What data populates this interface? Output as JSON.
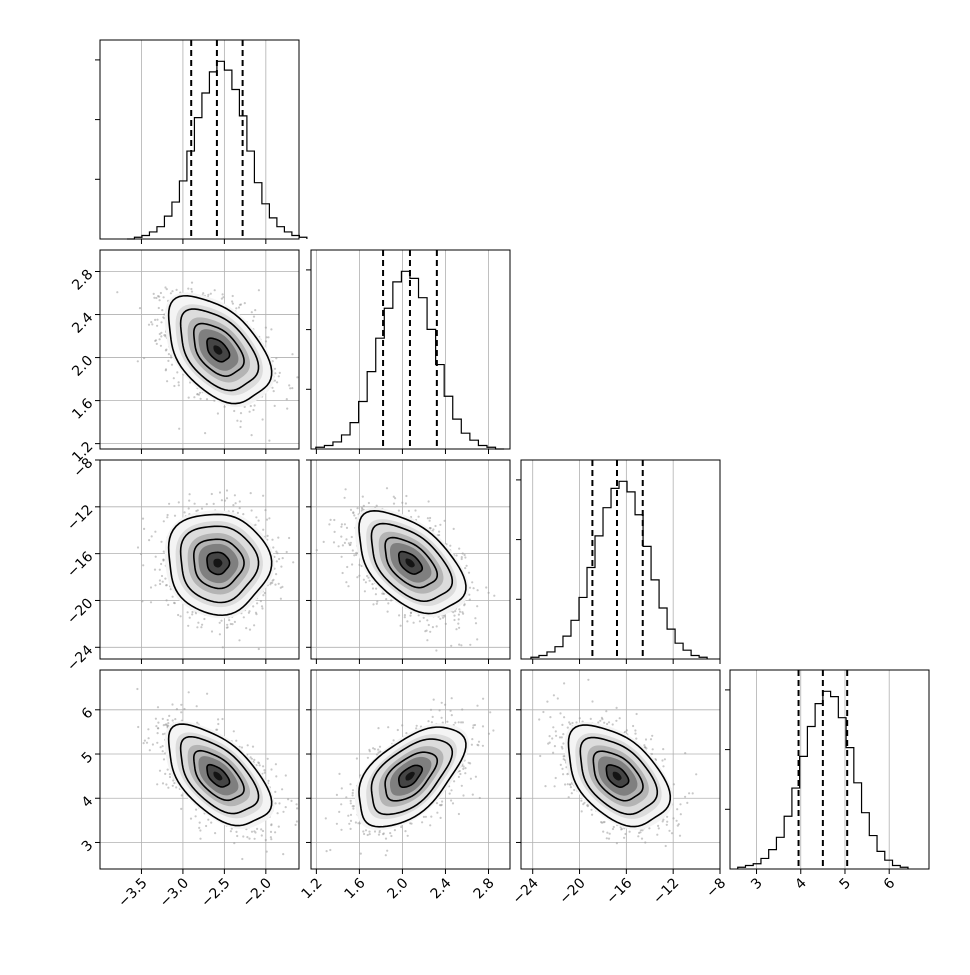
{
  "chart_data": {
    "type": "corner",
    "parameters": [
      {
        "index": 0,
        "range": [
          -4.0,
          -1.6
        ],
        "ticks": [
          -3.5,
          -3.0,
          -2.5,
          -2.0
        ],
        "tick_labels": [
          "−3.5",
          "−3.0",
          "−2.5",
          "−2.0"
        ],
        "quantiles": [
          -2.9,
          -2.59,
          -2.28
        ],
        "mean": -2.58,
        "sd": 0.3
      },
      {
        "index": 1,
        "range": [
          1.15,
          3.0
        ],
        "ticks": [
          1.2,
          1.6,
          2.0,
          2.4,
          2.8
        ],
        "tick_labels": [
          "1.2",
          "1.6",
          "2.0",
          "2.4",
          "2.8"
        ],
        "quantiles": [
          1.82,
          2.07,
          2.32
        ],
        "mean": 2.07,
        "sd": 0.24
      },
      {
        "index": 2,
        "range": [
          -25.0,
          -8.0
        ],
        "ticks": [
          -24,
          -20,
          -16,
          -12,
          -8
        ],
        "tick_labels": [
          "−24",
          "−20",
          "−16",
          "−12",
          "−8"
        ],
        "quantiles": [
          -18.9,
          -16.8,
          -14.6
        ],
        "mean": -16.8,
        "sd": 2.1
      },
      {
        "index": 3,
        "range": [
          2.4,
          6.9
        ],
        "ticks": [
          3,
          4,
          5,
          6
        ],
        "tick_labels": [
          "3",
          "4",
          "5",
          "6"
        ],
        "quantiles": [
          3.95,
          4.5,
          5.05
        ],
        "mean": 4.5,
        "sd": 0.55
      }
    ],
    "correlations": {
      "0-1": -0.45,
      "0-2": -0.05,
      "0-3": -0.55,
      "1-2": -0.5,
      "1-3": 0.55,
      "2-3": -0.45
    },
    "histograms": [
      [
        0,
        1,
        2,
        4,
        7,
        13,
        21,
        33,
        50,
        69,
        83,
        95,
        101,
        96,
        85,
        70,
        50,
        32,
        20,
        12,
        7,
        4,
        2,
        1
      ],
      [
        1,
        2,
        4,
        8,
        15,
        27,
        44,
        63,
        80,
        95,
        101,
        97,
        86,
        68,
        48,
        30,
        17,
        9,
        5,
        2,
        1,
        0
      ],
      [
        1,
        2,
        4,
        7,
        13,
        22,
        35,
        52,
        70,
        86,
        97,
        101,
        95,
        82,
        64,
        45,
        29,
        17,
        9,
        5,
        2,
        1
      ],
      [
        1,
        2,
        3,
        6,
        11,
        18,
        30,
        46,
        64,
        81,
        94,
        101,
        98,
        86,
        69,
        49,
        32,
        19,
        10,
        5,
        2,
        1
      ]
    ],
    "contour_levels_sigma": [
      0.5,
      1.0,
      1.5,
      2.0
    ],
    "quantile_line_style": "dashed",
    "grid": true,
    "title": "",
    "legend": "none"
  }
}
